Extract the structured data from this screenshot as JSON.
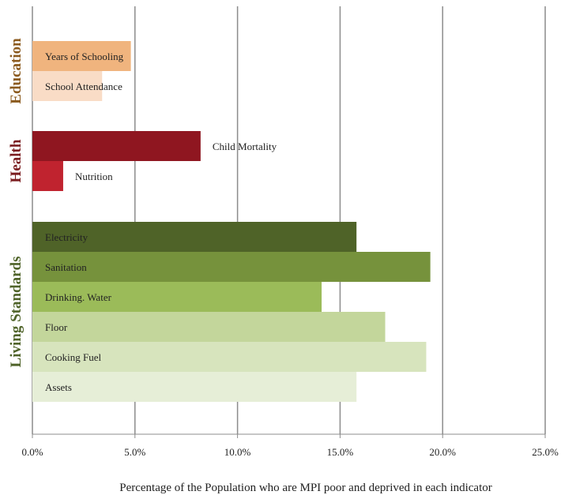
{
  "chart_data": {
    "type": "bar",
    "orientation": "horizontal",
    "title": "",
    "xlabel": "Percentage of the Population who are MPI poor and deprived in each indicator",
    "xlim": [
      0,
      25
    ],
    "xticks": [
      "0.0%",
      "5.0%",
      "10.0%",
      "15.0%",
      "20.0%",
      "25.0%"
    ],
    "xtick_values": [
      0,
      5,
      10,
      15,
      20,
      25
    ],
    "grid": "vertical",
    "legend": "none",
    "groups": [
      {
        "name": "Education",
        "color": "#8B5A1E",
        "bars": [
          {
            "label": "Years of Schooling",
            "value": 4.8,
            "color": "#F0B47E",
            "label_position": "inside"
          },
          {
            "label": "School Attendance",
            "value": 3.4,
            "color": "#F9DCC6",
            "label_position": "inside"
          }
        ]
      },
      {
        "name": "Health",
        "color": "#7A1C1F",
        "bars": [
          {
            "label": "Child Mortality",
            "value": 8.2,
            "color": "#8F1620",
            "label_position": "outside"
          },
          {
            "label": "Nutrition",
            "value": 1.5,
            "color": "#C0232F",
            "label_position": "outside"
          }
        ]
      },
      {
        "name": "Living Standards",
        "color": "#4F6329",
        "bars": [
          {
            "label": "Electricity",
            "value": 15.8,
            "color": "#4F6328",
            "label_position": "inside"
          },
          {
            "label": "Sanitation",
            "value": 19.4,
            "color": "#76923C",
            "label_position": "inside"
          },
          {
            "label": "Drinking. Water",
            "value": 14.1,
            "color": "#9BBB59",
            "label_position": "inside"
          },
          {
            "label": "Floor",
            "value": 17.2,
            "color": "#C3D69B",
            "label_position": "inside"
          },
          {
            "label": "Cooking Fuel",
            "value": 19.2,
            "color": "#D7E4BD",
            "label_position": "inside"
          },
          {
            "label": "Assets",
            "value": 15.8,
            "color": "#E6EED7",
            "label_position": "inside"
          }
        ]
      }
    ]
  }
}
